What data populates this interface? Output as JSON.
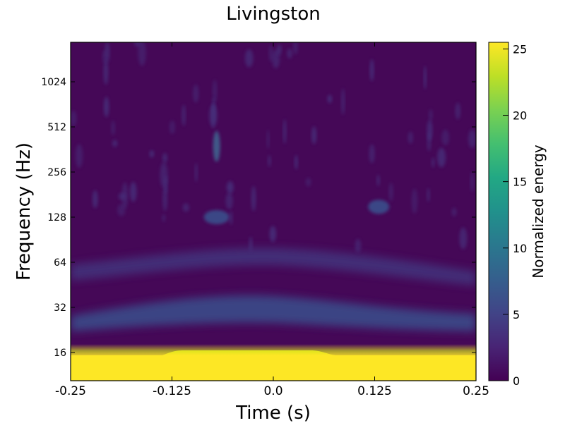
{
  "chart_data": {
    "type": "heatmap",
    "title": "Livingston",
    "xlabel": "Time (s)",
    "ylabel": "Frequency (Hz)",
    "xlim": [
      -0.25,
      0.25
    ],
    "x_ticks": [
      "-0.25",
      "-0.125",
      "0.0",
      "0.125",
      "0.25"
    ],
    "y_scale": "log2",
    "y_ticks": [
      "16",
      "32",
      "64",
      "128",
      "256",
      "512",
      "1024"
    ],
    "colorbar": {
      "label": "Normalized energy",
      "colormap": "viridis",
      "range": [
        0,
        25.5
      ],
      "ticks": [
        "0",
        "5",
        "10",
        "15",
        "20",
        "25"
      ]
    },
    "features": [
      {
        "kind": "high-energy band",
        "f_max": 16,
        "energy": 25
      },
      {
        "kind": "faint band",
        "f_center": 30,
        "energy": 4
      },
      {
        "kind": "faint band",
        "f_center": 60,
        "energy": 2.5
      },
      {
        "kind": "blob",
        "t": -0.07,
        "f": 128,
        "energy": 5
      },
      {
        "kind": "blob",
        "t": 0.13,
        "f": 150,
        "energy": 4
      },
      {
        "kind": "streak",
        "t": -0.07,
        "f": 380,
        "energy": 6
      }
    ],
    "grid": false
  }
}
